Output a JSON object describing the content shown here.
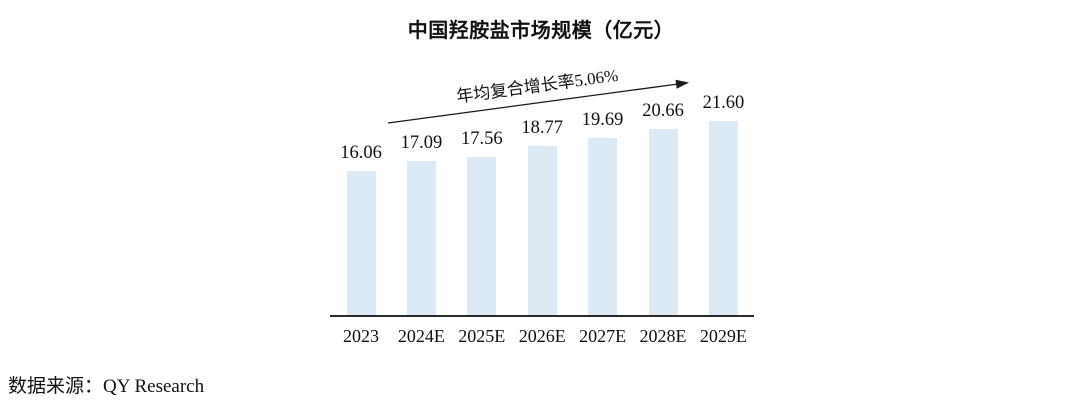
{
  "chart": {
    "title": "中国羟胺盐市场规模（亿元）",
    "cagr_label": "年均复合增长率5.06%",
    "source": "数据来源：QY Research"
  },
  "chart_data": {
    "type": "bar",
    "title": "中国羟胺盐市场规模（亿元）",
    "annotation": "年均复合增长率5.06%",
    "categories": [
      "2023",
      "2024E",
      "2025E",
      "2026E",
      "2027E",
      "2028E",
      "2029E"
    ],
    "values": [
      16.06,
      17.09,
      17.56,
      18.77,
      19.69,
      20.66,
      21.6
    ],
    "value_labels": [
      "16.06",
      "17.09",
      "17.56",
      "18.77",
      "19.69",
      "20.66",
      "21.60"
    ],
    "xlabel": "",
    "ylabel": "",
    "ylim": [
      0,
      22
    ],
    "grid": false,
    "legend": "none",
    "bar_color": "#DCEAF6",
    "axis_color": "#2B2B2B",
    "arrow_color": "#1A1A1A",
    "source": "数据来源：QY Research"
  }
}
